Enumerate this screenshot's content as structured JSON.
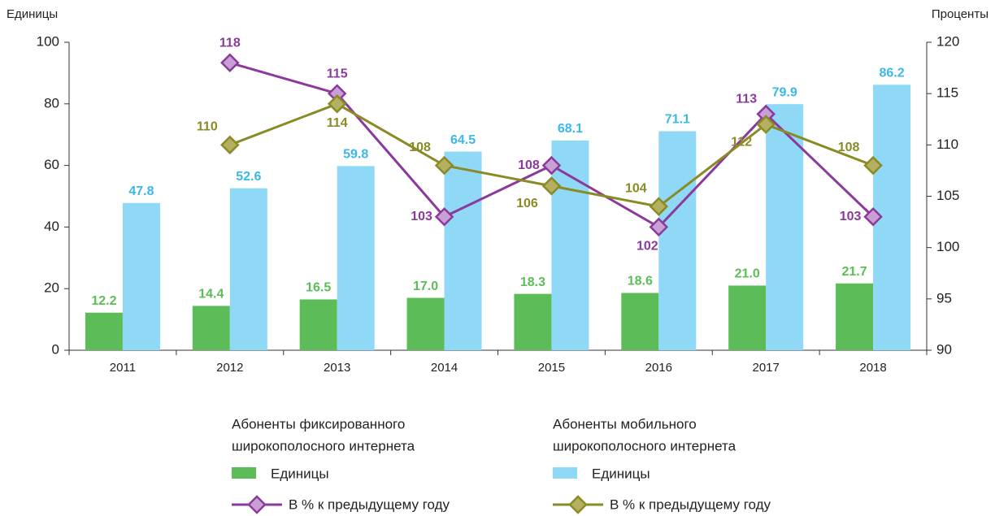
{
  "chart_data": {
    "type": "bar_line",
    "y_label": "Единицы",
    "y2_label": "Проценты",
    "categories": [
      "2011",
      "2012",
      "2013",
      "2014",
      "2015",
      "2016",
      "2017",
      "2018"
    ],
    "ylim": [
      0,
      100
    ],
    "yticks": [
      0,
      20,
      40,
      60,
      80,
      100
    ],
    "y2lim": [
      90,
      120
    ],
    "y2ticks": [
      90,
      95,
      100,
      105,
      110,
      115,
      120
    ],
    "legend_groups": [
      {
        "title": [
          "Абоненты фиксированного",
          "широкополосного интернета"
        ]
      },
      {
        "title": [
          "Абоненты мобильного",
          "широкополосного интернета"
        ]
      }
    ],
    "series": [
      {
        "name": "Единицы",
        "kind": "bar",
        "color": "#5cbd58",
        "label_color": "#5cbd58",
        "values": [
          12.2,
          14.4,
          16.5,
          17.0,
          18.3,
          18.6,
          21.0,
          21.7
        ],
        "value_labels": [
          "12.2",
          "14.4",
          "16.5",
          "17.0",
          "18.3",
          "18.6",
          "21.0",
          "21.7"
        ]
      },
      {
        "name": "Единицы",
        "kind": "bar",
        "color": "#8fd8f6",
        "label_color": "#3bb8e8",
        "values": [
          47.8,
          52.6,
          59.8,
          64.5,
          68.1,
          71.1,
          79.9,
          86.2
        ],
        "value_labels": [
          "47.8",
          "52.6",
          "59.8",
          "64.5",
          "68.1",
          "71.1",
          "79.9",
          "86.2"
        ]
      },
      {
        "name": "В % к предыдущему году",
        "kind": "line",
        "axis": "y2",
        "color": "#8b3a9c",
        "marker_color": "#c9a0d6",
        "values": [
          null,
          118,
          115,
          103,
          108,
          102,
          113,
          103
        ]
      },
      {
        "name": "В % к предыдущему году",
        "kind": "line",
        "axis": "y2",
        "color": "#8a8a26",
        "marker_color": "#b5b060",
        "values": [
          null,
          110,
          114,
          108,
          106,
          104,
          112,
          108
        ]
      }
    ]
  }
}
